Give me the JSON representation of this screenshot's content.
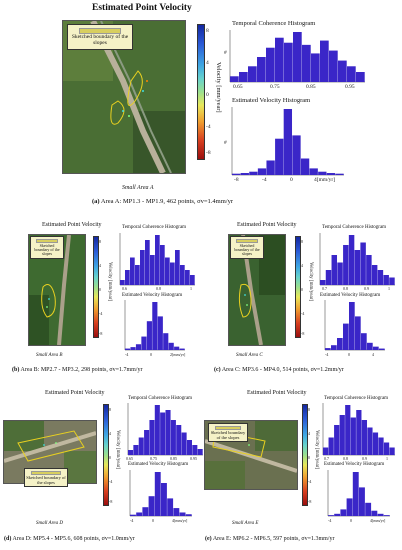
{
  "panel_a": {
    "title": "Estimated Point Velocity",
    "legend": "Sketched boundary of the slopes",
    "colorbar_label": "Velocity [mm/year]",
    "colorbar_ticks": [
      "8",
      "4",
      "0",
      "-4",
      "-8"
    ],
    "area_label": "Small Area A",
    "caption_prefix": "(a)",
    "caption": "Area A: MP1.3 - MP1.9, 462 points, σv=1.4mm/yr",
    "coh_title": "Temporal Coherence Histogram",
    "coh_ylabel": "#",
    "coh_ticks": [
      "0.65",
      "0.75",
      "0.85",
      "0.95"
    ],
    "vel_title": "Estimated Velocity Histogram",
    "vel_ylabel": "#",
    "vel_ticks": [
      "-8",
      "-4",
      "0",
      "4[mm/yr]"
    ]
  },
  "panel_b": {
    "title": "Estimated Point Velocity",
    "legend": "Sketched boundary of the slopes",
    "colorbar_label": "Velocity [mm/year]",
    "colorbar_ticks": [
      "8",
      "4",
      "0",
      "-4",
      "-8"
    ],
    "area_label": "Small Area B",
    "caption_prefix": "(b)",
    "caption": "Area B: MP2.7 - MP3.2, 298 points, σv=1.7mm/yr",
    "coh_title": "Temporal Coherence Histogram",
    "coh_ticks": [
      "0.6",
      "0.8",
      "1"
    ],
    "vel_title": "Estimated Velocity Histogram",
    "vel_ticks": [
      "-4",
      "0",
      "2[mm/yr]"
    ]
  },
  "panel_c": {
    "title": "Estimated Point Velocity",
    "legend": "Sketched boundary of the slopes",
    "colorbar_label": "Velocity [mm/year]",
    "colorbar_ticks": [
      "8",
      "4",
      "0",
      "-4",
      "-8"
    ],
    "area_label": "Small Area C",
    "caption_prefix": "(c)",
    "caption": "Area C: MP3.6 - MP4.0, 514 points, σv=1.2mm/yr",
    "coh_title": "Temporal Coherence Histogram",
    "coh_ticks": [
      "0.7",
      "0.8",
      "0.9",
      "1"
    ],
    "vel_title": "Estimated Velocity Histogram",
    "vel_ticks": [
      "-4",
      "0",
      "4"
    ]
  },
  "panel_d": {
    "title": "Estimated Point Velocity",
    "legend": "Sketched boundary of the slopes",
    "colorbar_label": "Velocity [mm/year]",
    "colorbar_ticks": [
      "8",
      "4",
      "0",
      "-4",
      "-8"
    ],
    "area_label": "Small Area D",
    "caption_prefix": "(d)",
    "caption": "Area D: MP5.4 - MP5.6, 608 points, σv=1.0mm/yr",
    "coh_title": "Temporal Coherence Histogram",
    "coh_ticks": [
      "0.65",
      "0.75",
      "0.85",
      "0.95"
    ],
    "vel_title": "Estimated Velocity Histogram",
    "vel_ticks": [
      "-4",
      "0",
      "4[mm/yr]"
    ]
  },
  "panel_e": {
    "title": "Estimated Point Velocity",
    "legend": "Sketched boundary of the slopes",
    "colorbar_label": "Velocity [mm/year]",
    "colorbar_ticks": [
      "8",
      "4",
      "0",
      "-4",
      "-8"
    ],
    "area_label": "Small Area E",
    "caption_prefix": "(e)",
    "caption": "Area E: MP6.2 - MP6.5, 597 points, σv=1.3mm/yr",
    "coh_title": "Temporal Coherence Histogram",
    "coh_ticks": [
      "0.7",
      "0.8",
      "0.9",
      "1"
    ],
    "vel_title": "Estimated Velocity Histogram",
    "vel_ticks": [
      "-4",
      "0",
      "4[mm/yr]"
    ]
  },
  "colors": {
    "histogram": "#3a26c8",
    "map_green": "#3e6a30",
    "boundary": "#e8d020"
  },
  "chart_data": [
    {
      "type": "bar",
      "id": "a-coherence",
      "values": [
        8,
        14,
        22,
        35,
        48,
        62,
        55,
        70,
        52,
        40,
        58,
        44,
        30,
        22,
        14
      ]
    },
    {
      "type": "bar",
      "id": "a-velocity",
      "values": [
        2,
        3,
        5,
        10,
        22,
        55,
        100,
        60,
        25,
        10,
        5,
        3,
        2
      ]
    },
    {
      "type": "bar",
      "id": "b-coherence",
      "values": [
        10,
        30,
        55,
        40,
        70,
        90,
        60,
        100,
        80,
        55,
        45,
        70,
        40,
        30,
        20
      ]
    },
    {
      "type": "bar",
      "id": "b-velocity",
      "values": [
        3,
        6,
        12,
        28,
        60,
        100,
        70,
        35,
        15,
        7,
        3
      ]
    },
    {
      "type": "bar",
      "id": "c-coherence",
      "values": [
        10,
        30,
        60,
        45,
        80,
        100,
        70,
        85,
        60,
        40,
        30,
        20,
        15
      ]
    },
    {
      "type": "bar",
      "id": "c-velocity",
      "values": [
        4,
        10,
        25,
        55,
        100,
        70,
        35,
        15,
        7,
        3
      ]
    },
    {
      "type": "bar",
      "id": "d-coherence",
      "values": [
        10,
        20,
        35,
        50,
        70,
        100,
        85,
        90,
        70,
        60,
        45,
        30,
        20,
        12
      ]
    },
    {
      "type": "bar",
      "id": "d-velocity",
      "values": [
        3,
        8,
        20,
        45,
        100,
        75,
        40,
        18,
        8,
        4
      ]
    },
    {
      "type": "bar",
      "id": "e-coherence",
      "values": [
        15,
        35,
        60,
        80,
        100,
        75,
        90,
        70,
        55,
        45,
        35,
        25,
        15
      ]
    },
    {
      "type": "bar",
      "id": "e-velocity",
      "values": [
        2,
        5,
        15,
        40,
        100,
        65,
        30,
        12,
        5,
        2
      ]
    }
  ]
}
